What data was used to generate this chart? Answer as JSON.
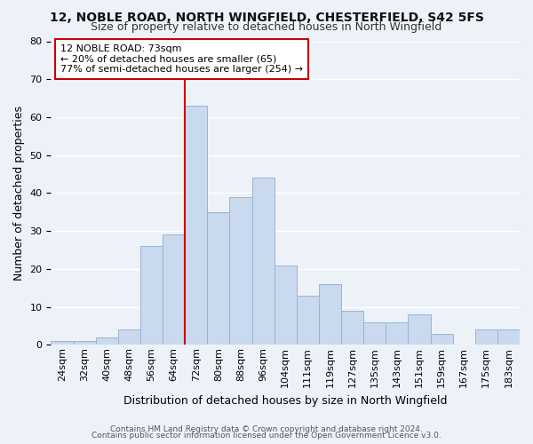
{
  "title1": "12, NOBLE ROAD, NORTH WINGFIELD, CHESTERFIELD, S42 5FS",
  "title2": "Size of property relative to detached houses in North Wingfield",
  "xlabel": "Distribution of detached houses by size in North Wingfield",
  "ylabel": "Number of detached properties",
  "footer1": "Contains HM Land Registry data © Crown copyright and database right 2024.",
  "footer2": "Contains public sector information licensed under the Open Government Licence v3.0.",
  "bin_labels": [
    "24sqm",
    "32sqm",
    "40sqm",
    "48sqm",
    "56sqm",
    "64sqm",
    "72sqm",
    "80sqm",
    "88sqm",
    "96sqm",
    "104sqm",
    "111sqm",
    "119sqm",
    "127sqm",
    "135sqm",
    "143sqm",
    "151sqm",
    "159sqm",
    "167sqm",
    "175sqm",
    "183sqm"
  ],
  "bar_heights": [
    1,
    1,
    2,
    4,
    26,
    29,
    63,
    35,
    39,
    44,
    21,
    13,
    16,
    9,
    6,
    6,
    8,
    3,
    0,
    4,
    4
  ],
  "bar_color": "#c9d9ee",
  "bar_edge_color": "#9ab4d4",
  "marker_index": 6,
  "marker_color": "#cc0000",
  "ylim": [
    0,
    80
  ],
  "yticks": [
    0,
    10,
    20,
    30,
    40,
    50,
    60,
    70,
    80
  ],
  "annotation_title": "12 NOBLE ROAD: 73sqm",
  "annotation_line1": "← 20% of detached houses are smaller (65)",
  "annotation_line2": "77% of semi-detached houses are larger (254) →",
  "annotation_box_color": "#cc0000",
  "background_color": "#edf2f9",
  "grid_color": "#ffffff",
  "title1_fontsize": 10,
  "title2_fontsize": 9,
  "xlabel_fontsize": 9,
  "ylabel_fontsize": 9,
  "footer_fontsize": 6.5,
  "tick_fontsize": 8,
  "annot_fontsize": 8
}
